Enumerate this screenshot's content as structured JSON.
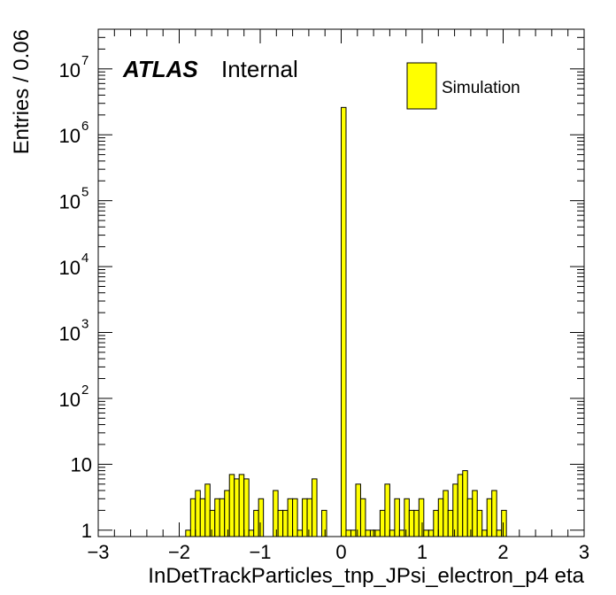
{
  "chart_data": {
    "type": "bar",
    "title": "",
    "label_bold": "ATLAS",
    "label_status": "Internal",
    "xlabel": "InDetTrackParticles_tnp_JPsi_electron_p4 eta",
    "ylabel": "Entries / 0.06",
    "xlim": [
      -3,
      3
    ],
    "ylim": [
      0.8,
      40000000
    ],
    "yscale": "log",
    "bin_width": 0.06,
    "xticks": [
      -3,
      -2,
      -1,
      0,
      1,
      2,
      3
    ],
    "xtick_labels": [
      "−3",
      "−2",
      "−1",
      "0",
      "1",
      "2",
      "3"
    ],
    "yticks": [
      1,
      10,
      100,
      1000,
      10000,
      100000,
      1000000,
      10000000
    ],
    "ytick_labels": [
      {
        "base": "1",
        "exp": ""
      },
      {
        "base": "10",
        "exp": ""
      },
      {
        "base": "10",
        "exp": "2"
      },
      {
        "base": "10",
        "exp": "3"
      },
      {
        "base": "10",
        "exp": "4"
      },
      {
        "base": "10",
        "exp": "5"
      },
      {
        "base": "10",
        "exp": "6"
      },
      {
        "base": "10",
        "exp": "7"
      }
    ],
    "legend": {
      "position": "top-right",
      "entries": [
        "Simulation"
      ]
    },
    "fill_color": "#ffff00",
    "line_color": "#000000",
    "bins": [
      {
        "x": -1.92,
        "y": 1
      },
      {
        "x": -1.86,
        "y": 3
      },
      {
        "x": -1.8,
        "y": 4
      },
      {
        "x": -1.74,
        "y": 3
      },
      {
        "x": -1.68,
        "y": 5
      },
      {
        "x": -1.62,
        "y": 2
      },
      {
        "x": -1.56,
        "y": 3
      },
      {
        "x": -1.5,
        "y": 3
      },
      {
        "x": -1.44,
        "y": 4
      },
      {
        "x": -1.38,
        "y": 7
      },
      {
        "x": -1.32,
        "y": 6
      },
      {
        "x": -1.26,
        "y": 7
      },
      {
        "x": -1.2,
        "y": 6
      },
      {
        "x": -1.14,
        "y": 1
      },
      {
        "x": -1.08,
        "y": 2
      },
      {
        "x": -1.02,
        "y": 3
      },
      {
        "x": -0.84,
        "y": 4
      },
      {
        "x": -0.78,
        "y": 2
      },
      {
        "x": -0.72,
        "y": 2
      },
      {
        "x": -0.66,
        "y": 3
      },
      {
        "x": -0.6,
        "y": 3
      },
      {
        "x": -0.54,
        "y": 1
      },
      {
        "x": -0.48,
        "y": 3
      },
      {
        "x": -0.42,
        "y": 3
      },
      {
        "x": -0.36,
        "y": 6
      },
      {
        "x": -0.24,
        "y": 2
      },
      {
        "x": 0.0,
        "y": 2600000
      },
      {
        "x": 0.06,
        "y": 1
      },
      {
        "x": 0.12,
        "y": 1
      },
      {
        "x": 0.18,
        "y": 5
      },
      {
        "x": 0.24,
        "y": 3
      },
      {
        "x": 0.3,
        "y": 1
      },
      {
        "x": 0.36,
        "y": 1
      },
      {
        "x": 0.42,
        "y": 1
      },
      {
        "x": 0.48,
        "y": 2
      },
      {
        "x": 0.54,
        "y": 5
      },
      {
        "x": 0.6,
        "y": 1
      },
      {
        "x": 0.66,
        "y": 3
      },
      {
        "x": 0.72,
        "y": 1
      },
      {
        "x": 0.78,
        "y": 3
      },
      {
        "x": 0.84,
        "y": 2
      },
      {
        "x": 0.9,
        "y": 2
      },
      {
        "x": 0.96,
        "y": 3
      },
      {
        "x": 1.02,
        "y": 1
      },
      {
        "x": 1.08,
        "y": 1
      },
      {
        "x": 1.14,
        "y": 2
      },
      {
        "x": 1.2,
        "y": 3
      },
      {
        "x": 1.26,
        "y": 4
      },
      {
        "x": 1.32,
        "y": 2
      },
      {
        "x": 1.38,
        "y": 5
      },
      {
        "x": 1.44,
        "y": 7
      },
      {
        "x": 1.5,
        "y": 8
      },
      {
        "x": 1.56,
        "y": 3
      },
      {
        "x": 1.62,
        "y": 4
      },
      {
        "x": 1.68,
        "y": 2
      },
      {
        "x": 1.74,
        "y": 1
      },
      {
        "x": 1.8,
        "y": 3
      },
      {
        "x": 1.86,
        "y": 4
      },
      {
        "x": 1.92,
        "y": 1
      },
      {
        "x": 1.98,
        "y": 2
      }
    ]
  }
}
